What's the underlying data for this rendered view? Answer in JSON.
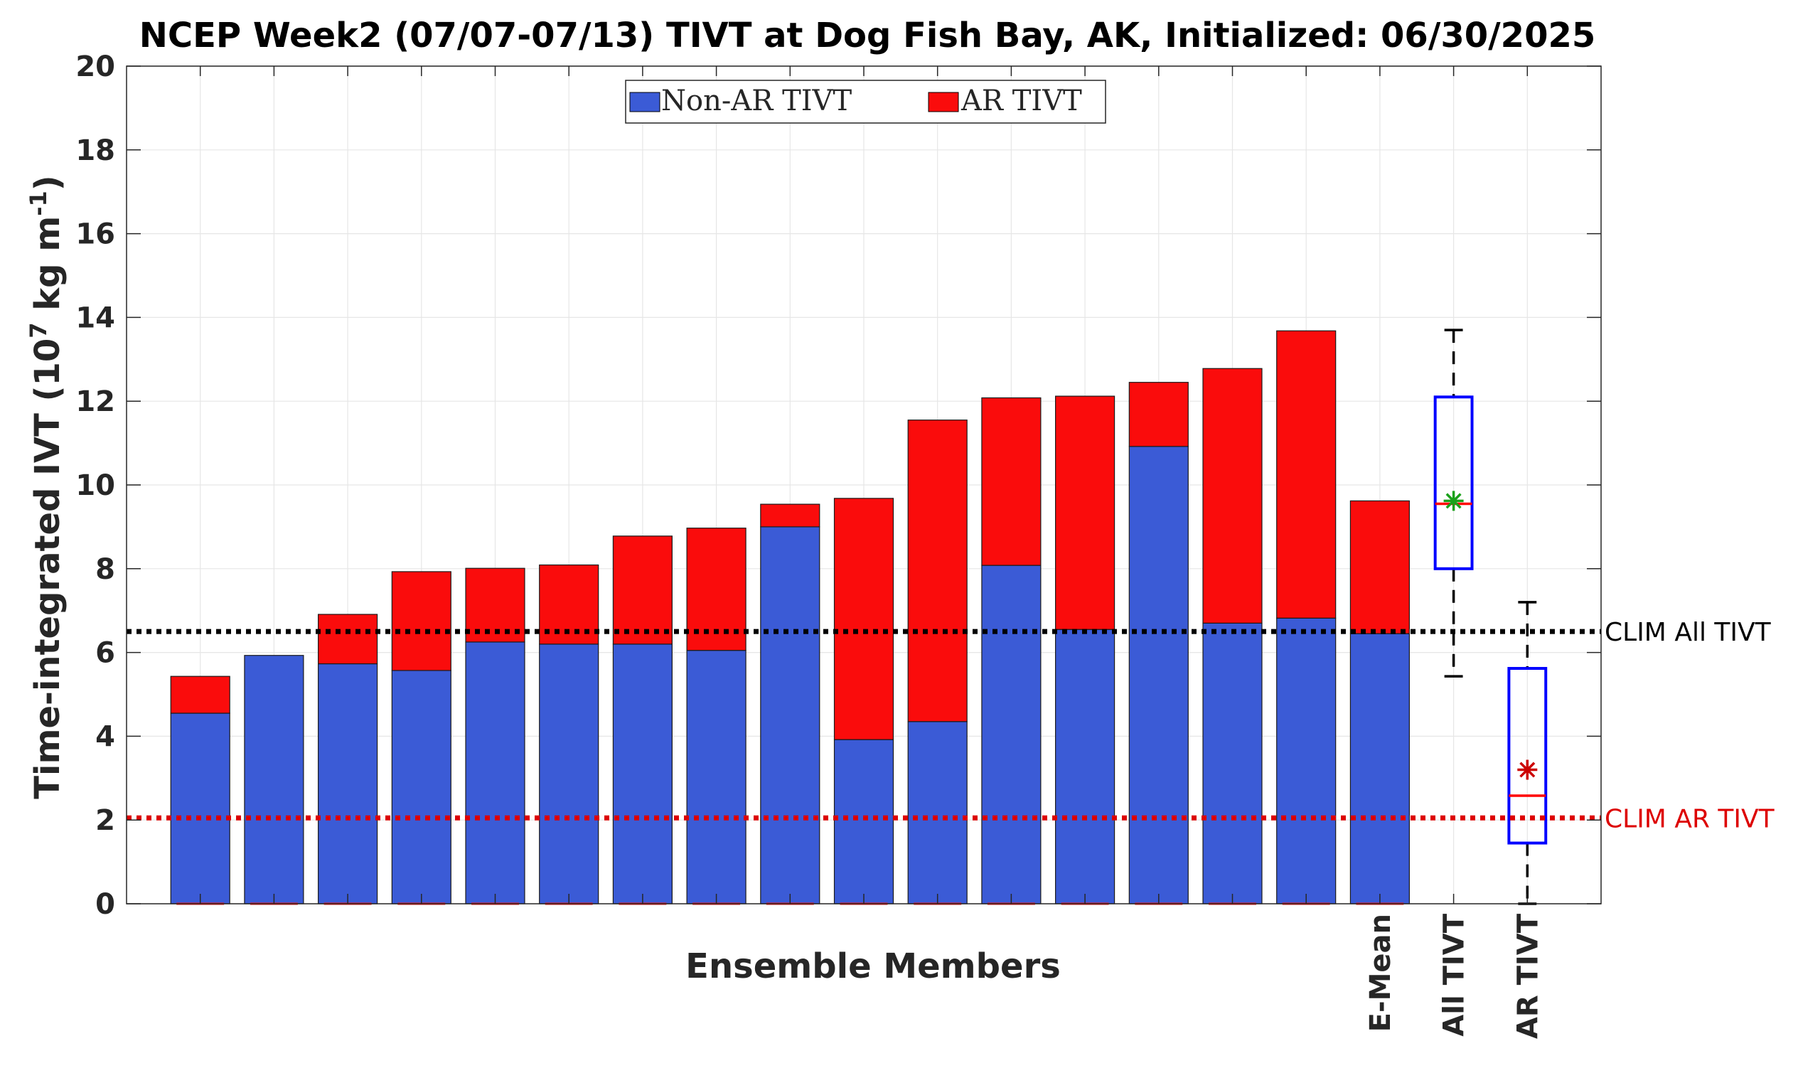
{
  "chart_data": {
    "type": "bar",
    "title": "NCEP Week2 (07/07-07/13) TIVT at Dog Fish Bay, AK, Initialized: 06/30/2025",
    "xlabel": "Ensemble Members",
    "ylabel_main": "Time-integrated IVT (10",
    "ylabel_exp": "7",
    "ylabel_mid": " kg m",
    "ylabel_exp2": "-1",
    "ylabel_end": ")",
    "ylim": [
      0,
      20
    ],
    "yticks": [
      "0",
      "2",
      "4",
      "6",
      "8",
      "10",
      "12",
      "14",
      "16",
      "18",
      "20"
    ],
    "grid": true,
    "stacked": true,
    "legend_position": "top-center",
    "series": [
      {
        "name": "Non-AR TIVT",
        "color": "#3b5bd6",
        "values": [
          4.55,
          5.93,
          5.73,
          5.57,
          6.25,
          6.2,
          6.2,
          6.05,
          9.0,
          3.92,
          4.35,
          8.08,
          6.55,
          10.92,
          6.7,
          6.82,
          6.45
        ]
      },
      {
        "name": "AR TIVT",
        "color": "#fa0c0c",
        "values": [
          0.88,
          0.0,
          1.18,
          2.36,
          1.76,
          1.89,
          2.58,
          2.92,
          0.54,
          5.76,
          7.2,
          4.0,
          5.57,
          1.53,
          6.08,
          6.86,
          3.17
        ]
      }
    ],
    "category_labels": [
      "",
      "",
      "",
      "",
      "",
      "",
      "",
      "",
      "",
      "",
      "",
      "",
      "",
      "",
      "",
      "",
      "E-Mean"
    ],
    "boxplots": [
      {
        "label": "All TIVT",
        "min": 5.43,
        "q1": 8.0,
        "median": 9.55,
        "q3": 12.1,
        "max": 13.7,
        "mean": 9.62,
        "mean_color": "#1aa11a",
        "box_color": "#0000ff"
      },
      {
        "label": "AR TIVT",
        "min": 0.0,
        "q1": 1.45,
        "median": 2.58,
        "q3": 5.62,
        "max": 7.2,
        "mean": 3.2,
        "mean_color": "#cc0000",
        "box_color": "#0000ff"
      }
    ],
    "reference_lines": [
      {
        "label": "CLIM All TIVT",
        "value": 6.5,
        "color": "#000000"
      },
      {
        "label": "CLIM AR TIVT",
        "value": 2.05,
        "color": "#dd0000"
      }
    ]
  }
}
